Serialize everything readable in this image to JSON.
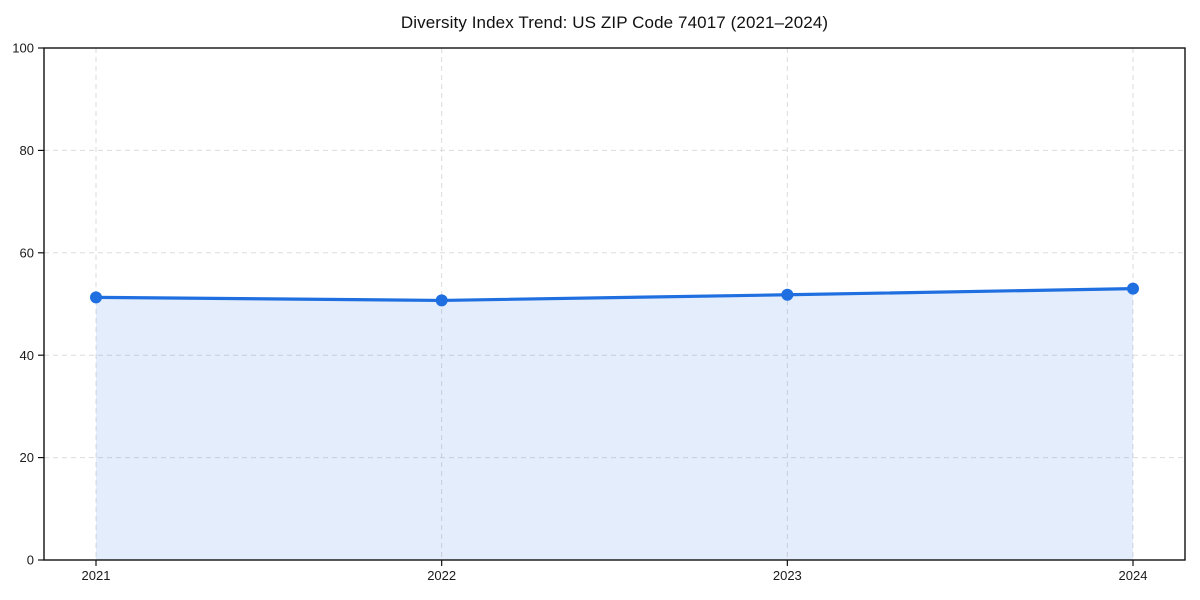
{
  "figure": {
    "title": "Diversity Index Trend: US ZIP Code 74017 (2021–2024)"
  },
  "chart_data": {
    "type": "line",
    "title": "Diversity Index Trend: US ZIP Code 74017 (2021–2024)",
    "categories": [
      "2021",
      "2022",
      "2023",
      "2024"
    ],
    "series": [
      {
        "name": "Diversity Index",
        "values": [
          51.3,
          50.7,
          51.8,
          53.0
        ]
      }
    ],
    "xlabel": "",
    "ylabel": "",
    "ylim": [
      0,
      100
    ],
    "yticks": [
      0,
      20,
      40,
      60,
      80,
      100
    ],
    "grid": true,
    "grid_style": "dashed",
    "legend_position": "none",
    "area_fill": true,
    "colors": {
      "line": "#1f6fe0",
      "marker": "#1f6fe0",
      "fill": "#1f6fe0",
      "fill_opacity": 0.12,
      "grid": "#dbdbdb",
      "axis": "#111111",
      "tick_label": "#1a1a1a",
      "background": "#ffffff"
    }
  }
}
